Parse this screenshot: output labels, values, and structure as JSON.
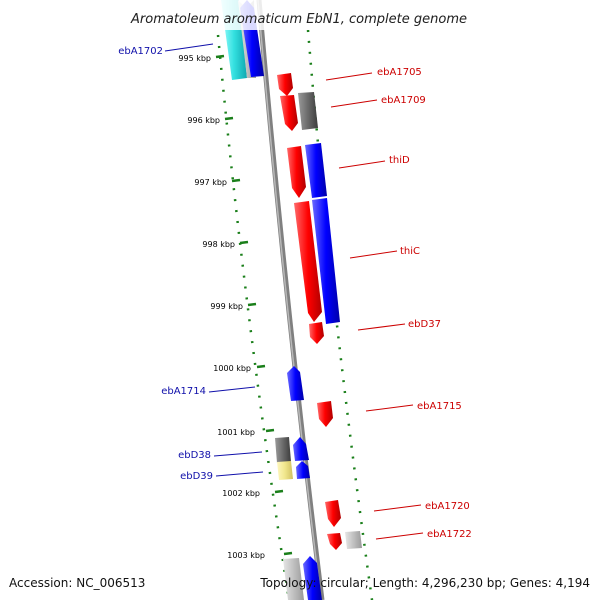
{
  "title": "Aromatoleum aromaticum EbN1, complete genome",
  "accession": "Accession: NC_006513",
  "topology": "Topology: circular; Length: 4,296,230 bp; Genes: 4,194",
  "ticks": [
    {
      "label": "995 kbp"
    },
    {
      "label": "996 kbp"
    },
    {
      "label": "997 kbp"
    },
    {
      "label": "998 kbp"
    },
    {
      "label": "999 kbp"
    },
    {
      "label": "1000 kbp"
    },
    {
      "label": "1001 kbp"
    },
    {
      "label": "1002 kbp"
    },
    {
      "label": "1003 kbp"
    }
  ],
  "gene_labels": [
    {
      "text": "ebA1702",
      "strand": "reverse"
    },
    {
      "text": "ebA1705",
      "strand": "forward"
    },
    {
      "text": "ebA1709",
      "strand": "forward"
    },
    {
      "text": "thiD",
      "strand": "forward"
    },
    {
      "text": "thiC",
      "strand": "forward"
    },
    {
      "text": "ebD37",
      "strand": "forward"
    },
    {
      "text": "ebA1714",
      "strand": "reverse"
    },
    {
      "text": "ebA1715",
      "strand": "forward"
    },
    {
      "text": "ebD38",
      "strand": "reverse"
    },
    {
      "text": "ebD39",
      "strand": "reverse"
    },
    {
      "text": "ebA1720",
      "strand": "forward"
    },
    {
      "text": "ebA1722",
      "strand": "forward"
    }
  ],
  "colors": {
    "forward_cds": "#ff0000",
    "reverse_cds": "#0000ff",
    "other_gene": "#707070",
    "light_gene": "#bdbdbd",
    "rrna_cyan": "#33e0e0",
    "pale_yellow": "#f0e68c",
    "backbone": "#8c8c8c",
    "tick_green": "#1a7f1a"
  }
}
